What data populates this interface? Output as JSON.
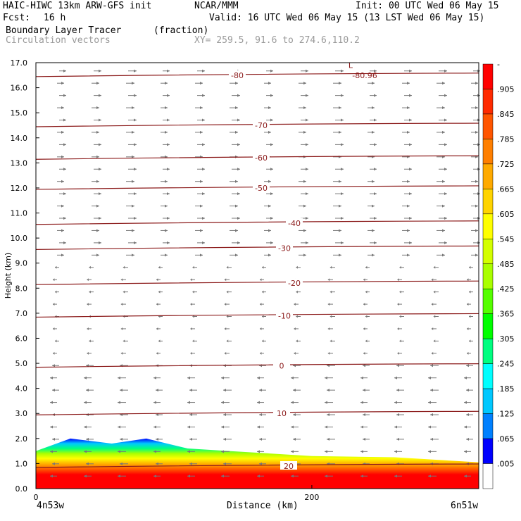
{
  "header": {
    "model": "HAIC-HIWC 13km ARW-GFS init",
    "org": "NCAR/MMM",
    "init": "Init: 00 UTC Wed 06 May 15",
    "fcst_label": "Fcst:",
    "fcst_value": "16 h",
    "valid": "Valid: 16 UTC Wed 06 May 15 (13 LST Wed 06 May 15)",
    "field": "Boundary Layer Tracer",
    "units": "(fraction)",
    "vectors": "Circulation vectors",
    "xy": "XY= 259.5, 91.6 to 274.6,110.2"
  },
  "axes": {
    "ylabel": "Height (km)",
    "xlabel": "Distance (km)",
    "x_left_label": "4n53w",
    "x_right_label": "6n51w",
    "yticks": [
      "0.0",
      "1.0",
      "2.0",
      "3.0",
      "4.0",
      "5.0",
      "6.0",
      "7.0",
      "8.0",
      "9.0",
      "10.0",
      "11.0",
      "12.0",
      "13.0",
      "14.0",
      "15.0",
      "16.0",
      "17.0"
    ],
    "xticks": [
      "0",
      "200"
    ]
  },
  "colorbar": {
    "labels": [
      "-",
      ".905",
      ".845",
      ".785",
      ".725",
      ".665",
      ".605",
      ".545",
      ".485",
      ".425",
      ".365",
      ".305",
      ".245",
      ".185",
      ".125",
      ".065",
      ".005"
    ],
    "colors": [
      "#ff0000",
      "#ff2a00",
      "#ff5500",
      "#ff7f00",
      "#ffaa00",
      "#ffd400",
      "#ffff00",
      "#d4ff00",
      "#aaff00",
      "#55ff00",
      "#00ff00",
      "#00ff80",
      "#00ffff",
      "#00c8ff",
      "#0080ff",
      "#0000ff",
      "#ffffff"
    ]
  },
  "chart_data": {
    "type": "cross-section",
    "title": "Boundary Layer Tracer",
    "xlabel": "Distance (km)",
    "ylabel": "Height (km)",
    "xlim": [
      0,
      321
    ],
    "ylim": [
      0,
      17
    ],
    "temperature_contours": [
      {
        "label": "-80",
        "y": 16.5
      },
      {
        "label": "-70",
        "y": 14.5
      },
      {
        "label": "-60",
        "y": 13.2
      },
      {
        "label": "-50",
        "y": 12.0
      },
      {
        "label": "-40",
        "y": 10.6
      },
      {
        "label": "-30",
        "y": 9.6
      },
      {
        "label": "-20",
        "y": 8.2
      },
      {
        "label": "-10",
        "y": 6.9
      },
      {
        "label": "0",
        "y": 4.9
      },
      {
        "label": "10",
        "y": 3.0
      },
      {
        "label": "20",
        "y": 0.9
      }
    ],
    "min_label": "-80.96",
    "low_marker": "L",
    "tracer_top_km": [
      {
        "x": 0,
        "y": 1.5
      },
      {
        "x": 25,
        "y": 2.0
      },
      {
        "x": 55,
        "y": 1.8
      },
      {
        "x": 80,
        "y": 2.0
      },
      {
        "x": 110,
        "y": 1.6
      },
      {
        "x": 140,
        "y": 1.5
      },
      {
        "x": 200,
        "y": 1.3
      },
      {
        "x": 260,
        "y": 1.25
      },
      {
        "x": 321,
        "y": 1.05
      }
    ]
  }
}
